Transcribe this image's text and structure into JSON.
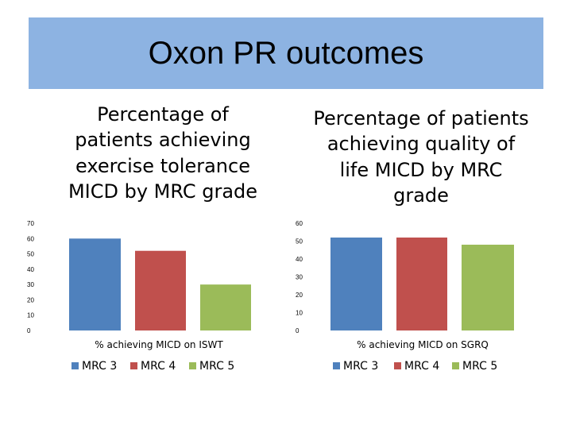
{
  "slide": {
    "title": "Oxon PR outcomes"
  },
  "chart_data": [
    {
      "type": "bar",
      "title": "Percentage of patients achieving exercise tolerance MICD by MRC grade",
      "categories": [
        "% achieving MICD on ISWT"
      ],
      "series": [
        {
          "name": "MRC 3",
          "values": [
            60
          ],
          "color": "#4f81bd"
        },
        {
          "name": "MRC 4",
          "values": [
            52
          ],
          "color": "#c0504d"
        },
        {
          "name": "MRC 5",
          "values": [
            30
          ],
          "color": "#9bbb59"
        }
      ],
      "ylim": [
        0,
        70
      ],
      "yticks": [
        0,
        10,
        20,
        30,
        40,
        50,
        60,
        70
      ],
      "grid": false,
      "legend": "bottom"
    },
    {
      "type": "bar",
      "title": "Percentage of patients achieving quality of life MICD by MRC grade",
      "categories": [
        "% achieving MICD on SGRQ"
      ],
      "series": [
        {
          "name": "MRC 3",
          "values": [
            52
          ],
          "color": "#4f81bd"
        },
        {
          "name": "MRC 4",
          "values": [
            52
          ],
          "color": "#c0504d"
        },
        {
          "name": "MRC 5",
          "values": [
            48
          ],
          "color": "#9bbb59"
        }
      ],
      "ylim": [
        0,
        60
      ],
      "yticks": [
        0,
        10,
        20,
        30,
        40,
        50,
        60
      ],
      "grid": false,
      "legend": "bottom"
    }
  ]
}
